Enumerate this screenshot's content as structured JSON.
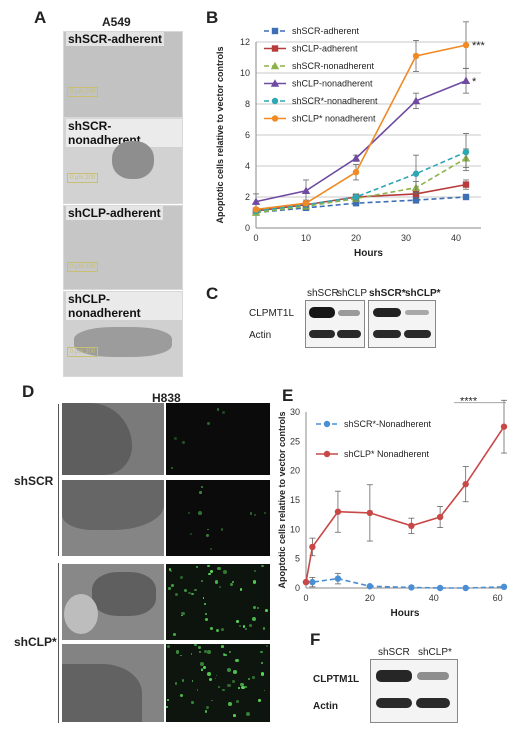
{
  "panels": {
    "a": {
      "letter": "A",
      "title": "A549",
      "images": [
        {
          "label": "shSCR-adherent",
          "scale": "0 μm 200"
        },
        {
          "label": "shSCR-nonadherent",
          "scale": "0 μm 200"
        },
        {
          "label": "shCLP-adherent",
          "scale": "0 μm 200"
        },
        {
          "label": "shCLP-nonadherent",
          "scale": "0 μm 200"
        }
      ]
    },
    "b": {
      "letter": "B"
    },
    "c": {
      "letter": "C",
      "lanes": [
        "shSCR",
        "shCLP",
        "shSCR*",
        "shCLP*"
      ],
      "rows": [
        "CLPMT1L",
        "Actin"
      ]
    },
    "d": {
      "letter": "D",
      "title": "H838",
      "groups": [
        "shSCR",
        "shCLP*"
      ]
    },
    "e": {
      "letter": "E"
    },
    "f": {
      "letter": "F",
      "lanes": [
        "shSCR",
        "shCLP*"
      ],
      "rows": [
        "CLPTM1L",
        "Actin"
      ]
    }
  },
  "chart_data": [
    {
      "type": "line",
      "panel": "B",
      "xlabel": "Hours",
      "ylabel": "Apoptotic cells relative to vector controls",
      "xlim": [
        0,
        45
      ],
      "ylim": [
        0,
        12
      ],
      "xticks": [
        0,
        10,
        20,
        30,
        40
      ],
      "yticks": [
        0,
        2,
        4,
        6,
        8,
        10,
        12
      ],
      "grid": true,
      "legend": "top-left",
      "x": [
        0,
        10,
        20,
        32,
        42
      ],
      "annotations": [
        {
          "text": "***",
          "series": "shCLP* nonadherent"
        },
        {
          "text": "*",
          "series": "shCLP-nonadherent"
        }
      ],
      "series": [
        {
          "name": "shSCR-adherent",
          "color": "#3d6fb6",
          "marker": "square",
          "dashed": true,
          "values": [
            1.0,
            1.3,
            1.6,
            1.8,
            2.0
          ],
          "errors": [
            0.1,
            0.1,
            0.1,
            0.2,
            0.1
          ]
        },
        {
          "name": "shCLP-adherent",
          "color": "#b83b3b",
          "marker": "square",
          "dashed": false,
          "values": [
            1.1,
            1.5,
            2.0,
            2.2,
            2.8
          ],
          "errors": [
            0.1,
            0.1,
            0.1,
            0.3,
            0.3
          ]
        },
        {
          "name": "shSCR-nonadherent",
          "color": "#8db24a",
          "marker": "triangle",
          "dashed": true,
          "values": [
            1.0,
            1.4,
            1.9,
            2.6,
            4.5
          ],
          "errors": [
            0.1,
            0.2,
            0.2,
            0.4,
            0.6
          ]
        },
        {
          "name": "shCLP-nonadherent",
          "color": "#6e4aa1",
          "marker": "triangle",
          "dashed": false,
          "values": [
            1.7,
            2.4,
            4.5,
            8.2,
            9.5
          ],
          "errors": [
            0.5,
            0.7,
            0.2,
            0.5,
            0.8
          ]
        },
        {
          "name": "shSCR*-nonadherent",
          "color": "#2ea6b3",
          "marker": "circle",
          "dashed": true,
          "values": [
            1.1,
            1.5,
            2.0,
            3.5,
            4.9
          ],
          "errors": [
            0.1,
            0.2,
            0.2,
            1.2,
            1.2
          ]
        },
        {
          "name": "shCLP* nonadherent",
          "color": "#f08a24",
          "marker": "circle",
          "dashed": false,
          "values": [
            1.2,
            1.6,
            3.6,
            11.1,
            11.8
          ],
          "errors": [
            0.1,
            0.2,
            0.5,
            1.0,
            1.5
          ]
        }
      ]
    },
    {
      "type": "line",
      "panel": "E",
      "xlabel": "Hours",
      "ylabel": "Apoptotic cells relative to vector controls",
      "xlim": [
        0,
        62
      ],
      "ylim": [
        0,
        30
      ],
      "xticks": [
        0,
        20,
        40,
        60
      ],
      "yticks": [
        0,
        5,
        10,
        15,
        20,
        25,
        30
      ],
      "grid": false,
      "legend": "top-left",
      "annotations": [
        {
          "text": "****",
          "series": "shCLP* Nonadherent"
        }
      ],
      "series": [
        {
          "name": "shSCR*-Nonadherent",
          "color": "#4a8fd4",
          "marker": "circle",
          "dashed": true,
          "x": [
            0,
            2,
            10,
            20,
            33,
            42,
            50,
            62
          ],
          "values": [
            1.0,
            1.0,
            1.6,
            0.3,
            0.1,
            0.0,
            0.0,
            0.2
          ],
          "errors": [
            0,
            0.8,
            0.9,
            0.1,
            0.1,
            0.1,
            0.1,
            0.1
          ]
        },
        {
          "name": "shCLP* Nonadherent",
          "color": "#c84848",
          "marker": "circle",
          "dashed": false,
          "x": [
            0,
            2,
            10,
            20,
            33,
            42,
            50,
            62
          ],
          "values": [
            1.0,
            7.0,
            13.0,
            12.8,
            10.6,
            12.1,
            17.7,
            27.5
          ],
          "errors": [
            0,
            1.5,
            3.5,
            4.8,
            1.3,
            1.8,
            3.0,
            4.5
          ]
        }
      ]
    }
  ]
}
